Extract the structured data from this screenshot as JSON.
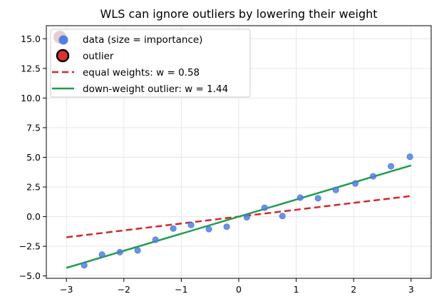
{
  "chart_data": {
    "type": "scatter",
    "title": "WLS can ignore outliers by lowering their weight",
    "xlabel": "",
    "ylabel": "",
    "xlim": [
      -3.35,
      3.35
    ],
    "ylim": [
      -5.2,
      16.1
    ],
    "xticks": [
      -3,
      -2,
      -1,
      0,
      1,
      2,
      3
    ],
    "yticks": [
      -5.0,
      -2.5,
      0.0,
      2.5,
      5.0,
      7.5,
      10.0,
      12.5,
      15.0
    ],
    "ytick_labels": [
      "−5.0",
      "−2.5",
      "0.0",
      "2.5",
      "5.0",
      "7.5",
      "10.0",
      "12.5",
      "15.0"
    ],
    "xtick_labels": [
      "−3",
      "−2",
      "−1",
      "0",
      "1",
      "2",
      "3"
    ],
    "grid": true,
    "legend_position": "top-left",
    "series": [
      {
        "name": "data (size = importance)",
        "kind": "points",
        "color": "#4f7fe6",
        "x": [
          -2.69,
          -2.38,
          -2.07,
          -1.76,
          -1.45,
          -1.14,
          -0.83,
          -0.52,
          -0.21,
          0.14,
          0.45,
          0.76,
          1.07,
          1.38,
          1.69,
          2.03,
          2.34,
          2.65,
          2.98
        ],
        "y": [
          -4.1,
          -3.2,
          -3.0,
          -2.85,
          -1.95,
          -1.0,
          -0.7,
          -1.05,
          -0.85,
          -0.05,
          0.75,
          0.05,
          1.6,
          1.55,
          2.25,
          2.8,
          3.4,
          4.25,
          5.05
        ]
      },
      {
        "name": "outlier",
        "kind": "outlier",
        "color": "#e03030",
        "x": [],
        "y": []
      },
      {
        "name": "equal weights: w = 0.58",
        "kind": "line",
        "style": "dashed",
        "color": "#d62728",
        "x": [
          -3,
          3
        ],
        "y": [
          -1.74,
          1.74
        ]
      },
      {
        "name": "down-weight outlier: w = 1.44",
        "kind": "line",
        "style": "solid",
        "color": "#1e9e4a",
        "x": [
          -3,
          3
        ],
        "y": [
          -4.32,
          4.32
        ]
      }
    ]
  }
}
